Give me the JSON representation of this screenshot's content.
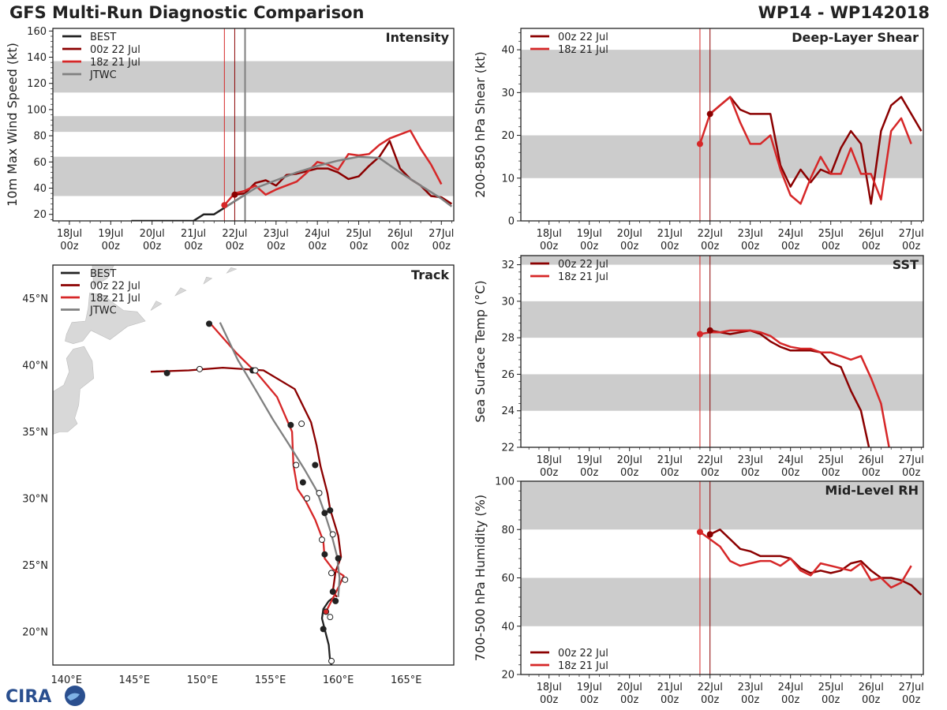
{
  "header": {
    "title": "GFS Multi-Run Diagnostic Comparison",
    "storm_id": "WP14 - WP142018"
  },
  "logo": {
    "text": "CIRA"
  },
  "colors": {
    "best": "#222222",
    "run_00z": "#8b0000",
    "run_18z": "#d62728",
    "jtwc": "#808080",
    "band": "#cccccc",
    "land": "#d8d8d8"
  },
  "time_axis": {
    "ticks": [
      {
        "day": 18,
        "label": [
          "18Jul",
          "00z"
        ]
      },
      {
        "day": 19,
        "label": [
          "19Jul",
          "00z"
        ]
      },
      {
        "day": 20,
        "label": [
          "20Jul",
          "00z"
        ]
      },
      {
        "day": 21,
        "label": [
          "21Jul",
          "00z"
        ]
      },
      {
        "day": 22,
        "label": [
          "22Jul",
          "00z"
        ]
      },
      {
        "day": 23,
        "label": [
          "23Jul",
          "00z"
        ]
      },
      {
        "day": 24,
        "label": [
          "24Jul",
          "00z"
        ]
      },
      {
        "day": 25,
        "label": [
          "25Jul",
          "00z"
        ]
      },
      {
        "day": 26,
        "label": [
          "26Jul",
          "00z"
        ]
      },
      {
        "day": 27,
        "label": [
          "27Jul",
          "00z"
        ]
      }
    ],
    "init_lines": [
      {
        "day": 21.75,
        "series": "18z 21 Jul"
      },
      {
        "day": 22.0,
        "series": "00z 22 Jul"
      },
      {
        "day": 22.25,
        "series": "JTWC"
      }
    ]
  },
  "chart_data": [
    {
      "id": "intensity",
      "type": "line",
      "title": "Intensity",
      "ylabel": "10m Max Wind Speed (kt)",
      "xlim": [
        17.6,
        27.3
      ],
      "ylim": [
        15,
        162
      ],
      "yticks": [
        20,
        40,
        60,
        80,
        100,
        120,
        140,
        160
      ],
      "bands": [
        [
          34,
          64
        ],
        [
          83,
          95
        ],
        [
          113,
          137
        ]
      ],
      "legend": [
        "BEST",
        "00z 22 Jul",
        "18z 21 Jul",
        "JTWC"
      ],
      "series": [
        {
          "name": "BEST",
          "color": "best",
          "x": [
            19.5,
            20.0,
            20.5,
            21.0,
            21.25,
            21.5,
            21.75,
            22.0,
            22.25
          ],
          "y": [
            15,
            15,
            15,
            15,
            20,
            20,
            25,
            30,
            35
          ]
        },
        {
          "name": "00z 22 Jul",
          "color": "run_00z",
          "x": [
            22.0,
            22.25,
            22.5,
            22.75,
            23.0,
            23.25,
            23.5,
            23.75,
            24.0,
            24.25,
            24.5,
            24.75,
            25.0,
            25.25,
            25.5,
            25.75,
            26.0,
            26.25,
            26.5,
            26.75,
            27.0,
            27.25
          ],
          "y": [
            35,
            36,
            44,
            46,
            42,
            50,
            51,
            53,
            55,
            55,
            52,
            47,
            49,
            57,
            64,
            76,
            55,
            47,
            42,
            34,
            33,
            28
          ]
        },
        {
          "name": "18z 21 Jul",
          "color": "run_18z",
          "x": [
            21.75,
            22.0,
            22.25,
            22.5,
            22.75,
            23.0,
            23.25,
            23.5,
            23.75,
            24.0,
            24.25,
            24.5,
            24.75,
            25.0,
            25.25,
            25.5,
            25.75,
            26.0,
            26.25,
            26.5,
            26.75,
            27.0
          ],
          "y": [
            27,
            36,
            38,
            42,
            35,
            39,
            42,
            45,
            52,
            60,
            58,
            54,
            66,
            65,
            66,
            73,
            78,
            81,
            84,
            70,
            58,
            43
          ]
        },
        {
          "name": "JTWC",
          "color": "jtwc",
          "x": [
            21.75,
            22.0,
            22.5,
            23.0,
            23.5,
            24.0,
            24.5,
            25.0,
            25.5,
            26.0,
            26.5,
            27.0,
            27.25
          ],
          "y": [
            25,
            30,
            40,
            46,
            52,
            57,
            61,
            64,
            63,
            52,
            42,
            32,
            26
          ]
        }
      ],
      "markers": [
        {
          "series": "18z 21 Jul",
          "x": 21.75,
          "y": 27
        },
        {
          "series": "00z 22 Jul",
          "x": 22.0,
          "y": 35
        }
      ]
    },
    {
      "id": "track",
      "type": "scatter",
      "title": "Track",
      "xlim": [
        139.0,
        168.5
      ],
      "ylim": [
        17.5,
        47.5
      ],
      "xticks": [
        {
          "v": 140,
          "label": "140°E"
        },
        {
          "v": 145,
          "label": "145°E"
        },
        {
          "v": 150,
          "label": "150°E"
        },
        {
          "v": 155,
          "label": "155°E"
        },
        {
          "v": 160,
          "label": "160°E"
        },
        {
          "v": 165,
          "label": "165°E"
        }
      ],
      "yticks": [
        {
          "v": 20,
          "label": "20°N"
        },
        {
          "v": 25,
          "label": "25°N"
        },
        {
          "v": 30,
          "label": "30°N"
        },
        {
          "v": 35,
          "label": "35°N"
        },
        {
          "v": 40,
          "label": "40°N"
        },
        {
          "v": 45,
          "label": "45°N"
        }
      ],
      "legend": [
        "BEST",
        "00z 22 Jul",
        "18z 21 Jul",
        "JTWC"
      ],
      "series": [
        {
          "name": "BEST",
          "color": "best",
          "lon": [
            159.5,
            159.4,
            159.3,
            159.0,
            158.8,
            158.9,
            159.3,
            159.7
          ],
          "lat": [
            17.5,
            17.8,
            19.0,
            20.2,
            21.0,
            21.7,
            22.3,
            22.6
          ],
          "dots": [
            [
              159.5,
              17.8,
              "open"
            ],
            [
              158.9,
              20.2,
              "filled"
            ]
          ]
        },
        {
          "name": "00z 22 Jul",
          "color": "run_00z",
          "lon": [
            159.9,
            159.6,
            159.8,
            160.2,
            160.0,
            159.4,
            159.2,
            158.7,
            158.4,
            158.0,
            156.8,
            154.5,
            151.5,
            149.0,
            146.2
          ],
          "lat": [
            22.6,
            23.0,
            24.5,
            25.6,
            27.2,
            29.2,
            30.4,
            32.4,
            34.0,
            35.7,
            38.2,
            39.6,
            39.8,
            39.6,
            39.5
          ],
          "dots": [
            [
              159.8,
              22.3,
              "filled"
            ],
            [
              159.6,
              23.0,
              "filled"
            ],
            [
              160.0,
              25.5,
              "filled"
            ],
            [
              159.0,
              25.8,
              "filled"
            ],
            [
              159.0,
              28.9,
              "filled"
            ],
            [
              159.4,
              29.1,
              "filled"
            ],
            [
              158.3,
              32.5,
              "filled"
            ],
            [
              157.4,
              31.2,
              "filled"
            ],
            [
              156.5,
              35.5,
              "filled"
            ],
            [
              153.7,
              39.6,
              "filled"
            ],
            [
              147.4,
              39.4,
              "filled"
            ]
          ]
        },
        {
          "name": "18z 21 Jul",
          "color": "run_18z",
          "lon": [
            159.1,
            159.6,
            160.1,
            160.4,
            159.6,
            159.0,
            158.9,
            158.3,
            157.6,
            157.0,
            156.7,
            156.6,
            155.5,
            154.1,
            152.5,
            150.6
          ],
          "lat": [
            21.5,
            22.5,
            23.5,
            24.2,
            24.7,
            25.5,
            26.8,
            28.4,
            29.8,
            30.7,
            32.5,
            35.0,
            37.6,
            39.3,
            40.9,
            43.1
          ],
          "dots": [
            [
              159.1,
              21.5,
              "filled"
            ],
            [
              159.4,
              21.1,
              "open"
            ],
            [
              160.5,
              23.9,
              "open"
            ],
            [
              159.5,
              24.4,
              "open"
            ],
            [
              158.8,
              26.9,
              "open"
            ],
            [
              157.7,
              30.0,
              "open"
            ],
            [
              156.9,
              32.5,
              "open"
            ],
            [
              157.3,
              35.6,
              "open"
            ],
            [
              150.5,
              43.1,
              "filled"
            ],
            [
              149.8,
              39.7,
              "open"
            ]
          ]
        },
        {
          "name": "JTWC",
          "color": "jtwc",
          "lon": [
            160.0,
            160.1,
            159.9,
            159.5,
            159.0,
            158.4,
            157.5,
            156.4,
            155.2,
            154.0,
            152.6,
            151.3
          ],
          "lat": [
            22.6,
            24.0,
            25.7,
            27.3,
            28.9,
            30.6,
            32.2,
            34.0,
            35.9,
            38.0,
            40.4,
            43.2
          ],
          "dots": [
            [
              158.6,
              30.4,
              "open"
            ],
            [
              159.6,
              27.3,
              "open"
            ],
            [
              153.9,
              39.6,
              "open"
            ]
          ]
        }
      ]
    },
    {
      "id": "shear",
      "type": "line",
      "title": "Deep-Layer Shear",
      "ylabel": "200-850 hPa Shear (kt)",
      "xlim": [
        17.3,
        27.3
      ],
      "ylim": [
        0,
        45
      ],
      "yticks": [
        0,
        10,
        20,
        30,
        40
      ],
      "bands": [
        [
          10,
          20
        ],
        [
          30,
          40
        ]
      ],
      "legend": [
        "00z 22 Jul",
        "18z 21 Jul"
      ],
      "series": [
        {
          "name": "00z 22 Jul",
          "color": "run_00z",
          "x": [
            22.0,
            22.25,
            22.5,
            22.75,
            23.0,
            23.25,
            23.5,
            23.75,
            24.0,
            24.25,
            24.5,
            24.75,
            25.0,
            25.25,
            25.5,
            25.75,
            26.0,
            26.25,
            26.5,
            26.75,
            27.0,
            27.25
          ],
          "y": [
            25,
            27,
            29,
            26,
            25,
            25,
            25,
            13,
            8,
            12,
            9,
            12,
            11,
            17,
            21,
            18,
            4,
            21,
            27,
            29,
            25,
            21
          ]
        },
        {
          "name": "18z 21 Jul",
          "color": "run_18z",
          "x": [
            21.75,
            22.0,
            22.25,
            22.5,
            22.75,
            23.0,
            23.25,
            23.5,
            23.75,
            24.0,
            24.25,
            24.5,
            24.75,
            25.0,
            25.25,
            25.5,
            25.75,
            26.0,
            26.25,
            26.5,
            26.75,
            27.0
          ],
          "y": [
            18,
            25,
            27,
            29,
            23,
            18,
            18,
            20,
            12,
            6,
            4,
            10,
            15,
            11,
            11,
            17,
            11,
            11,
            5,
            21,
            24,
            18
          ]
        }
      ],
      "markers": [
        {
          "series": "18z 21 Jul",
          "x": 21.75,
          "y": 18
        },
        {
          "series": "00z 22 Jul",
          "x": 22.0,
          "y": 25
        }
      ]
    },
    {
      "id": "sst",
      "type": "line",
      "title": "SST",
      "ylabel": "Sea Surface Temp (°C)",
      "xlim": [
        17.3,
        27.3
      ],
      "ylim": [
        22,
        32.5
      ],
      "yticks": [
        22,
        24,
        26,
        28,
        30,
        32
      ],
      "bands": [
        [
          24,
          26
        ],
        [
          28,
          30
        ],
        [
          32,
          32.5
        ]
      ],
      "legend": [
        "00z 22 Jul",
        "18z 21 Jul"
      ],
      "series": [
        {
          "name": "00z 22 Jul",
          "color": "run_00z",
          "x": [
            22.0,
            22.25,
            22.5,
            22.75,
            23.0,
            23.25,
            23.5,
            23.75,
            24.0,
            24.25,
            24.5,
            24.75,
            25.0,
            25.25,
            25.5,
            25.75,
            25.95
          ],
          "y": [
            28.4,
            28.3,
            28.2,
            28.3,
            28.4,
            28.2,
            27.8,
            27.5,
            27.3,
            27.3,
            27.3,
            27.2,
            26.6,
            26.4,
            25.1,
            24.0,
            22.0
          ]
        },
        {
          "name": "18z 21 Jul",
          "color": "run_18z",
          "x": [
            21.75,
            22.0,
            22.25,
            22.5,
            22.75,
            23.0,
            23.25,
            23.5,
            23.75,
            24.0,
            24.25,
            24.5,
            24.75,
            25.0,
            25.25,
            25.5,
            25.75,
            26.0,
            26.25,
            26.45
          ],
          "y": [
            28.2,
            28.3,
            28.3,
            28.4,
            28.4,
            28.4,
            28.3,
            28.1,
            27.7,
            27.5,
            27.4,
            27.4,
            27.2,
            27.2,
            27.0,
            26.8,
            27.0,
            25.8,
            24.4,
            22.0
          ]
        }
      ],
      "markers": [
        {
          "series": "18z 21 Jul",
          "x": 21.75,
          "y": 28.2
        },
        {
          "series": "00z 22 Jul",
          "x": 22.0,
          "y": 28.4
        }
      ]
    },
    {
      "id": "rh",
      "type": "line",
      "title": "Mid-Level RH",
      "ylabel": "700-500 hPa Humidity (%)",
      "xlim": [
        17.3,
        27.3
      ],
      "ylim": [
        20,
        100
      ],
      "yticks": [
        20,
        40,
        60,
        80,
        100
      ],
      "bands": [
        [
          40,
          60
        ],
        [
          80,
          100
        ]
      ],
      "legend": [
        "00z 22 Jul",
        "18z 21 Jul"
      ],
      "series": [
        {
          "name": "00z 22 Jul",
          "color": "run_00z",
          "x": [
            22.0,
            22.25,
            22.5,
            22.75,
            23.0,
            23.25,
            23.5,
            23.75,
            24.0,
            24.25,
            24.5,
            24.75,
            25.0,
            25.25,
            25.5,
            25.75,
            26.0,
            26.25,
            26.5,
            26.75,
            27.0,
            27.25
          ],
          "y": [
            78,
            80,
            76,
            72,
            71,
            69,
            69,
            69,
            68,
            64,
            62,
            63,
            62,
            63,
            66,
            67,
            63,
            60,
            60,
            59,
            57,
            53
          ]
        },
        {
          "name": "18z 21 Jul",
          "color": "run_18z",
          "x": [
            21.75,
            22.0,
            22.25,
            22.5,
            22.75,
            23.0,
            23.25,
            23.5,
            23.75,
            24.0,
            24.25,
            24.5,
            24.75,
            25.0,
            25.25,
            25.5,
            25.75,
            26.0,
            26.25,
            26.5,
            26.75,
            27.0
          ],
          "y": [
            79,
            76,
            73,
            67,
            65,
            66,
            67,
            67,
            65,
            68,
            63,
            61,
            66,
            65,
            64,
            63,
            66,
            59,
            60,
            56,
            58,
            65
          ]
        }
      ],
      "markers": [
        {
          "series": "18z 21 Jul",
          "x": 21.75,
          "y": 79
        },
        {
          "series": "00z 22 Jul",
          "x": 22.0,
          "y": 78
        }
      ]
    }
  ]
}
